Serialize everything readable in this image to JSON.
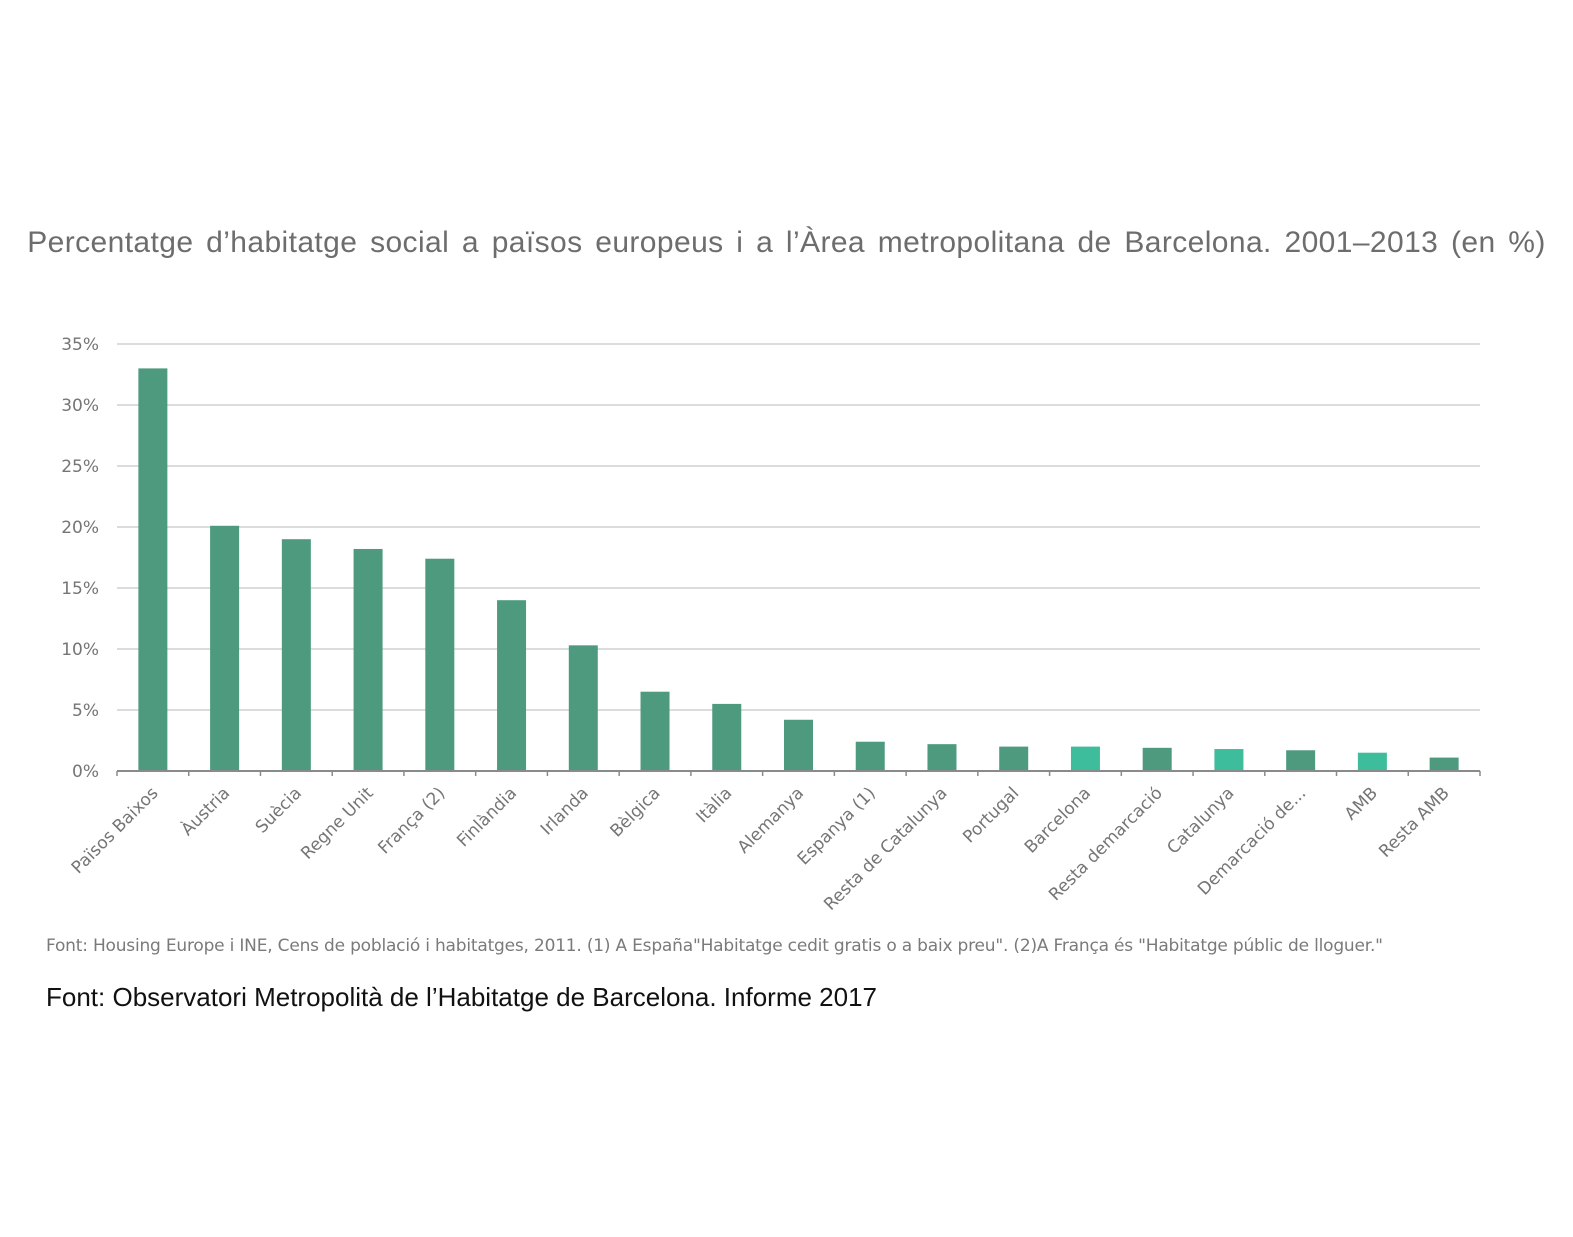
{
  "chart_data": {
    "type": "bar",
    "title": "Percentatge d’habitatge social a països europeus i a l’Àrea metropolitana de Barcelona. 2001–2013 (en %)",
    "categories": [
      "Països Baixos",
      "Àustria",
      "Suècia",
      "Regne Unit",
      "França (2)",
      "Finlàndia",
      "Irlanda",
      "Bèlgica",
      "Itàlia",
      "Alemanya",
      "Espanya (1)",
      "Resta de Catalunya",
      "Portugal",
      "Barcelona",
      "Resta demarcació",
      "Catalunya",
      "Demarcació de...",
      "AMB",
      "Resta AMB"
    ],
    "values": [
      33.0,
      20.1,
      19.0,
      18.2,
      17.4,
      14.0,
      10.3,
      6.5,
      5.5,
      4.2,
      2.4,
      2.2,
      2.0,
      2.0,
      1.9,
      1.8,
      1.7,
      1.5,
      1.1
    ],
    "bar_colors": [
      "#4e9a7e",
      "#4e9a7e",
      "#4e9a7e",
      "#4e9a7e",
      "#4e9a7e",
      "#4e9a7e",
      "#4e9a7e",
      "#4e9a7e",
      "#4e9a7e",
      "#4e9a7e",
      "#4e9a7e",
      "#4e9a7e",
      "#4e9a7e",
      "#3dbd9c",
      "#4e9a7e",
      "#3dbd9c",
      "#4e9a7e",
      "#3dbd9c",
      "#4e9a7e"
    ],
    "ylim": [
      0,
      35
    ],
    "yticks": [
      0,
      5,
      10,
      15,
      20,
      25,
      30,
      35
    ],
    "ytick_labels": [
      "0%",
      "5%",
      "10%",
      "15%",
      "20%",
      "25%",
      "30%",
      "35%"
    ],
    "grid": true,
    "xlabel": "",
    "ylabel": ""
  },
  "note": "Font: Housing Europe i INE, Cens de població i habitatges, 2011. (1) A España\"Habitatge cedit gratis o a baix preu\". (2)A França és \"Habitatge públic de lloguer.\"",
  "source": "Font: Observatori Metropolità de l’Habitatge de Barcelona. Informe 2017"
}
